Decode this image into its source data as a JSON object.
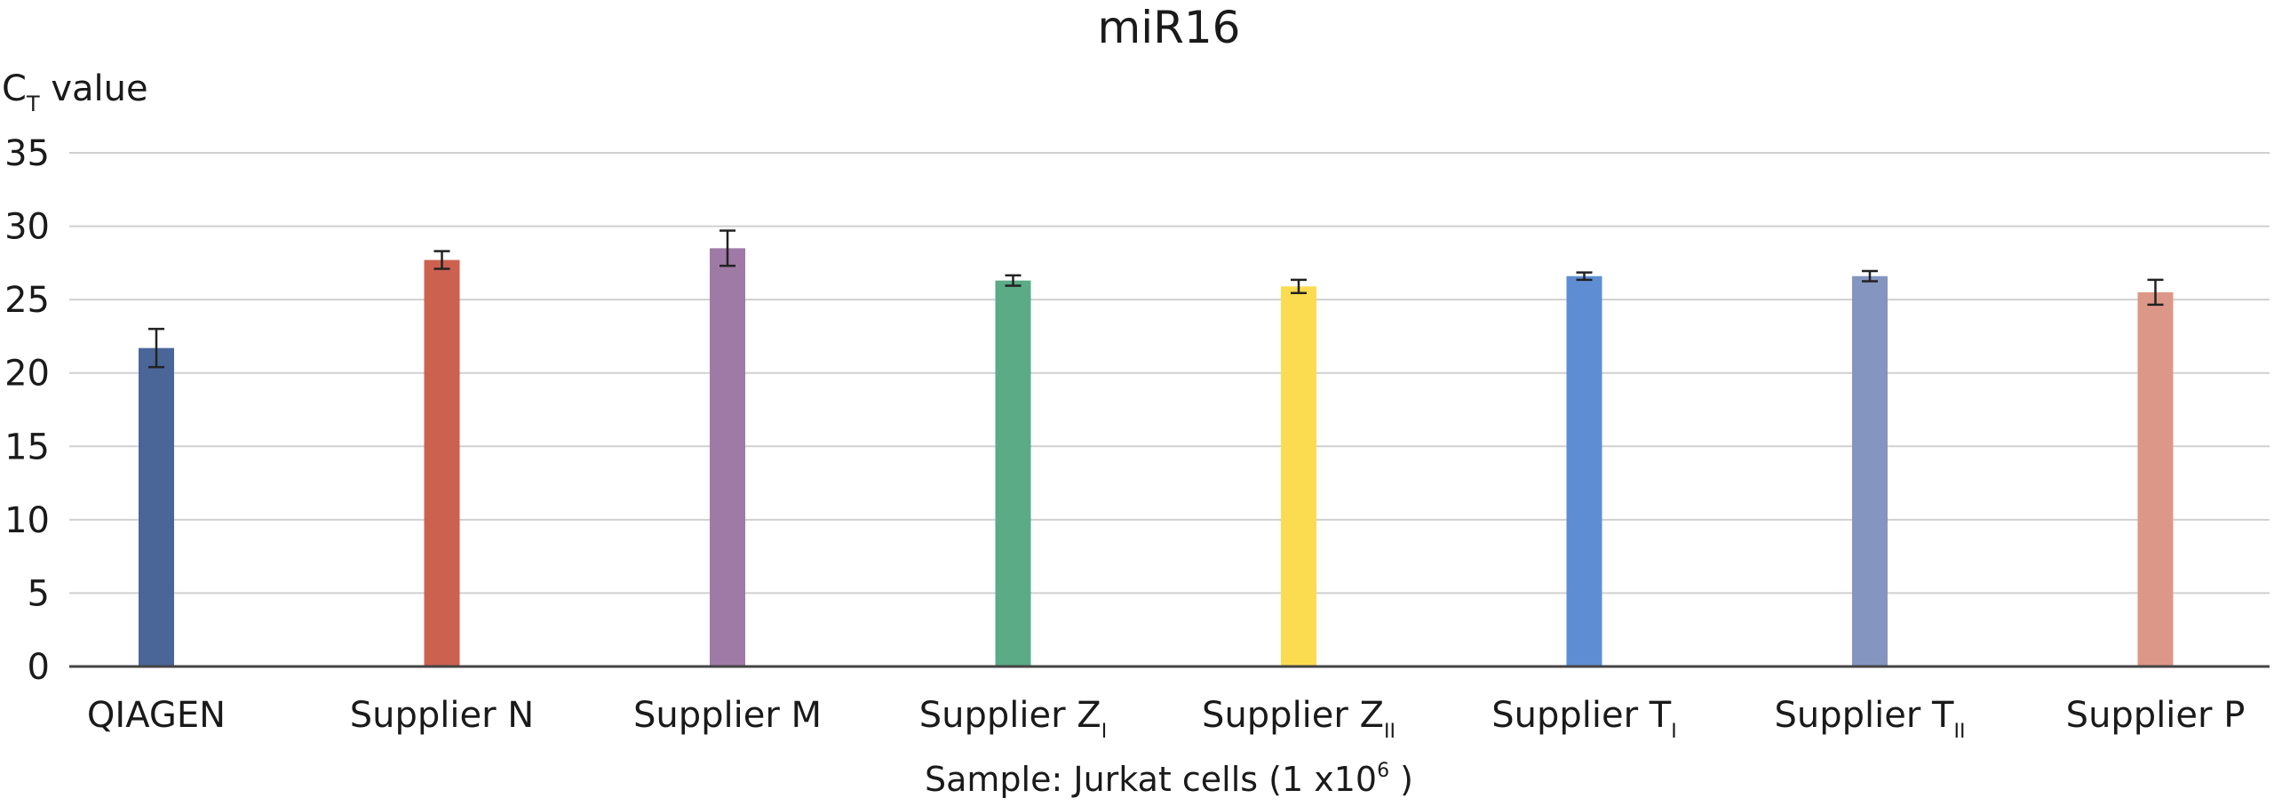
{
  "chart_data": {
    "type": "bar",
    "title": "miR16",
    "ylabel": {
      "main": "C",
      "sub": "T",
      "rest": " value"
    },
    "xlabel": {
      "main": "Sample: Jurkat cells (1 x10",
      "sup": "6",
      "rest": " )"
    },
    "ylim": [
      0,
      35
    ],
    "yticks": [
      0,
      5,
      10,
      15,
      20,
      25,
      30,
      35
    ],
    "grid": true,
    "legend": "none",
    "categories": [
      {
        "main": "QIAGEN",
        "sub": ""
      },
      {
        "main": "Supplier N",
        "sub": ""
      },
      {
        "main": "Supplier M",
        "sub": ""
      },
      {
        "main": "Supplier Z",
        "sub": "I"
      },
      {
        "main": "Supplier Z",
        "sub": "II"
      },
      {
        "main": "Supplier T",
        "sub": "I"
      },
      {
        "main": "Supplier T",
        "sub": "II"
      },
      {
        "main": "Supplier P",
        "sub": ""
      }
    ],
    "values": [
      21.7,
      27.7,
      28.5,
      26.3,
      25.9,
      26.6,
      26.6,
      25.5
    ],
    "errors": [
      1.3,
      0.6,
      1.2,
      0.35,
      0.45,
      0.25,
      0.35,
      0.85
    ],
    "colors": [
      "#4a6699",
      "#cc6150",
      "#a07aa6",
      "#5aab86",
      "#fbdc50",
      "#5f8dd3",
      "#8496c0",
      "#dd9788"
    ],
    "style": {
      "grid_color": "#d0d0d0",
      "axis_color": "#444444",
      "error_color": "#222222"
    }
  }
}
